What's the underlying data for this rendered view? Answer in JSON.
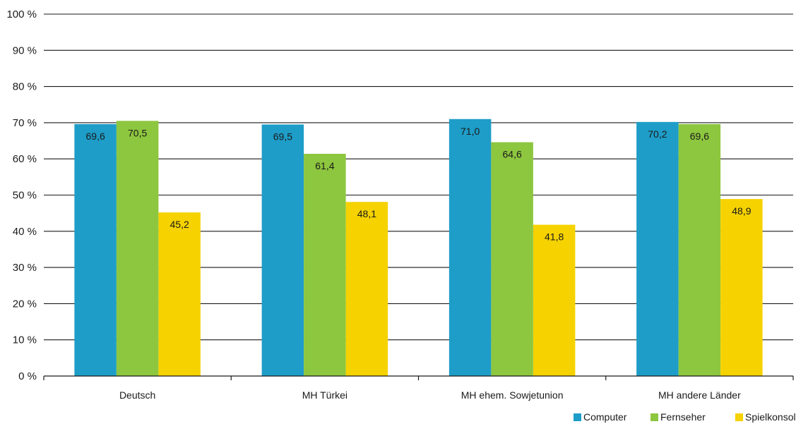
{
  "chart_data": {
    "type": "bar",
    "categories": [
      "Deutsch",
      "MH Türkei",
      "MH ehem. Sowjetunion",
      "MH andere Länder"
    ],
    "series": [
      {
        "name": "Computer",
        "color": "#1e9dc8",
        "values": [
          69.6,
          69.5,
          71.0,
          70.2
        ],
        "labels": [
          "69,6",
          "69,5",
          "71,0",
          "70,2"
        ]
      },
      {
        "name": "Fernseher",
        "color": "#8dc63f",
        "values": [
          70.5,
          61.4,
          64.6,
          69.6
        ],
        "labels": [
          "70,5",
          "61,4",
          "64,6",
          "69,6"
        ]
      },
      {
        "name": "Spielkonsole",
        "color": "#f5d200",
        "values": [
          45.2,
          48.1,
          41.8,
          48.9
        ],
        "labels": [
          "45,2",
          "48,1",
          "41,8",
          "48,9"
        ]
      }
    ],
    "ylim": [
      0,
      100
    ],
    "yticks": [
      "0 %",
      "10 %",
      "20 %",
      "30 %",
      "40 %",
      "50 %",
      "60 %",
      "70 %",
      "80 %",
      "90 %",
      "100 %"
    ],
    "grid": true,
    "legend_position": "bottom-right"
  }
}
